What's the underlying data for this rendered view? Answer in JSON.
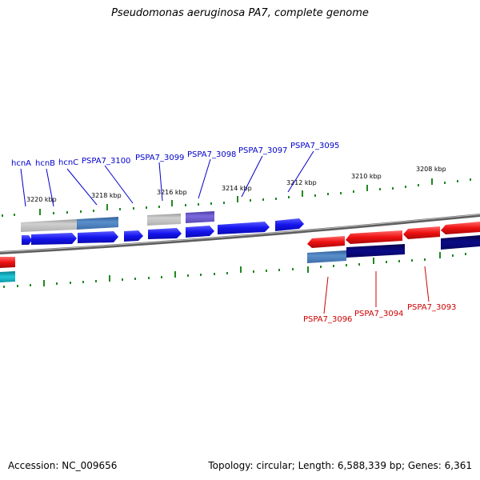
{
  "title": "Pseudomonas aeruginosa PA7, complete genome",
  "footer": {
    "accession": "Accession: NC_009656",
    "summary": "Topology: circular; Length: 6,588,339 bp; Genes: 6,361"
  },
  "colors": {
    "backbone": "#7a7a7a",
    "tick": "#228822",
    "forward_gene": "#1414ee",
    "reverse_gene": "#ee1111",
    "gray_feature": "#b8b8b8",
    "steel_feature": "#4a7fb8",
    "purple_feature": "#6a5acd",
    "navy_feature": "#0a0a80",
    "cyan_feature": "#16b8c8",
    "label_top": "#0000cc",
    "label_bottom": "#cc0000"
  },
  "ticks": [
    {
      "label": "3220 kbp"
    },
    {
      "label": "3218 kbp"
    },
    {
      "label": "3216 kbp"
    },
    {
      "label": "3214 kbp"
    },
    {
      "label": "3212 kbp"
    },
    {
      "label": "3210 kbp"
    },
    {
      "label": "3208 kbp"
    }
  ],
  "labels_top": [
    "hcnA",
    "hcnB",
    "hcnC",
    "PSPA7_3100",
    "PSPA7_3099",
    "PSPA7_3098",
    "PSPA7_3097",
    "PSPA7_3095"
  ],
  "labels_bottom": [
    "PSPA7_3096",
    "PSPA7_3094",
    "PSPA7_3093"
  ]
}
